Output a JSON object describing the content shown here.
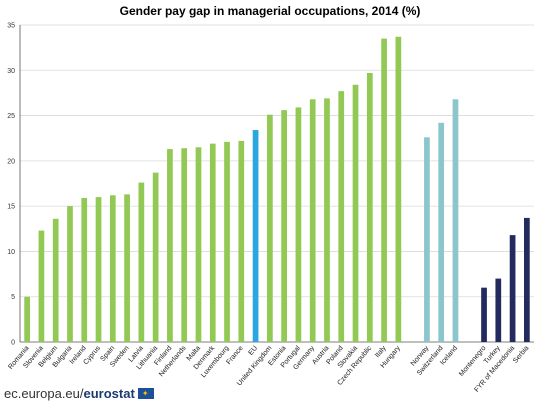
{
  "chart_data": {
    "type": "bar",
    "title": "Gender pay gap in managerial occupations, 2014 (%)",
    "xlabel": "",
    "ylabel": "",
    "ylim": [
      0,
      35
    ],
    "yticks": [
      0,
      5,
      10,
      15,
      20,
      25,
      30,
      35
    ],
    "grid": true,
    "legend": "none",
    "colors": {
      "eu_members": "#92c954",
      "eu": "#2aa7e0",
      "efta": "#8ac6cc",
      "candidates": "#232a5e",
      "grid": "#d9d9d9",
      "axis": "#555555"
    },
    "categories": [
      "Romania",
      "Slovenia",
      "Belgium",
      "Bulgaria",
      "Ireland",
      "Cyprus",
      "Spain",
      "Sweden",
      "Latvia",
      "Lithuania",
      "Finland",
      "Netherlands",
      "Malta",
      "Denmark",
      "Luxembourg",
      "France",
      "EU",
      "United Kingdom",
      "Estonia",
      "Portugal",
      "Germany",
      "Austria",
      "Poland",
      "Slovakia",
      "Czech Republic",
      "Italy",
      "Hungary",
      "",
      "Norway",
      "Switzerland",
      "Iceland",
      "",
      "Montenegro",
      "Turkey",
      "FYR of Macedonia",
      "Serbia"
    ],
    "values": [
      5.0,
      12.3,
      13.6,
      15.0,
      15.9,
      16.0,
      16.2,
      16.3,
      17.6,
      18.7,
      21.3,
      21.4,
      21.5,
      21.9,
      22.1,
      22.2,
      23.4,
      25.1,
      25.6,
      25.9,
      26.8,
      26.9,
      27.7,
      28.4,
      29.7,
      33.5,
      33.7,
      null,
      22.6,
      24.2,
      26.8,
      null,
      6.0,
      7.0,
      11.8,
      13.7
    ],
    "groups": [
      "eu_members",
      "eu_members",
      "eu_members",
      "eu_members",
      "eu_members",
      "eu_members",
      "eu_members",
      "eu_members",
      "eu_members",
      "eu_members",
      "eu_members",
      "eu_members",
      "eu_members",
      "eu_members",
      "eu_members",
      "eu_members",
      "eu",
      "eu_members",
      "eu_members",
      "eu_members",
      "eu_members",
      "eu_members",
      "eu_members",
      "eu_members",
      "eu_members",
      "eu_members",
      "eu_members",
      "gap",
      "efta",
      "efta",
      "efta",
      "gap",
      "candidates",
      "candidates",
      "candidates",
      "candidates"
    ]
  },
  "footer": {
    "site": "ec.europa.eu/",
    "brand": "eurostat"
  }
}
